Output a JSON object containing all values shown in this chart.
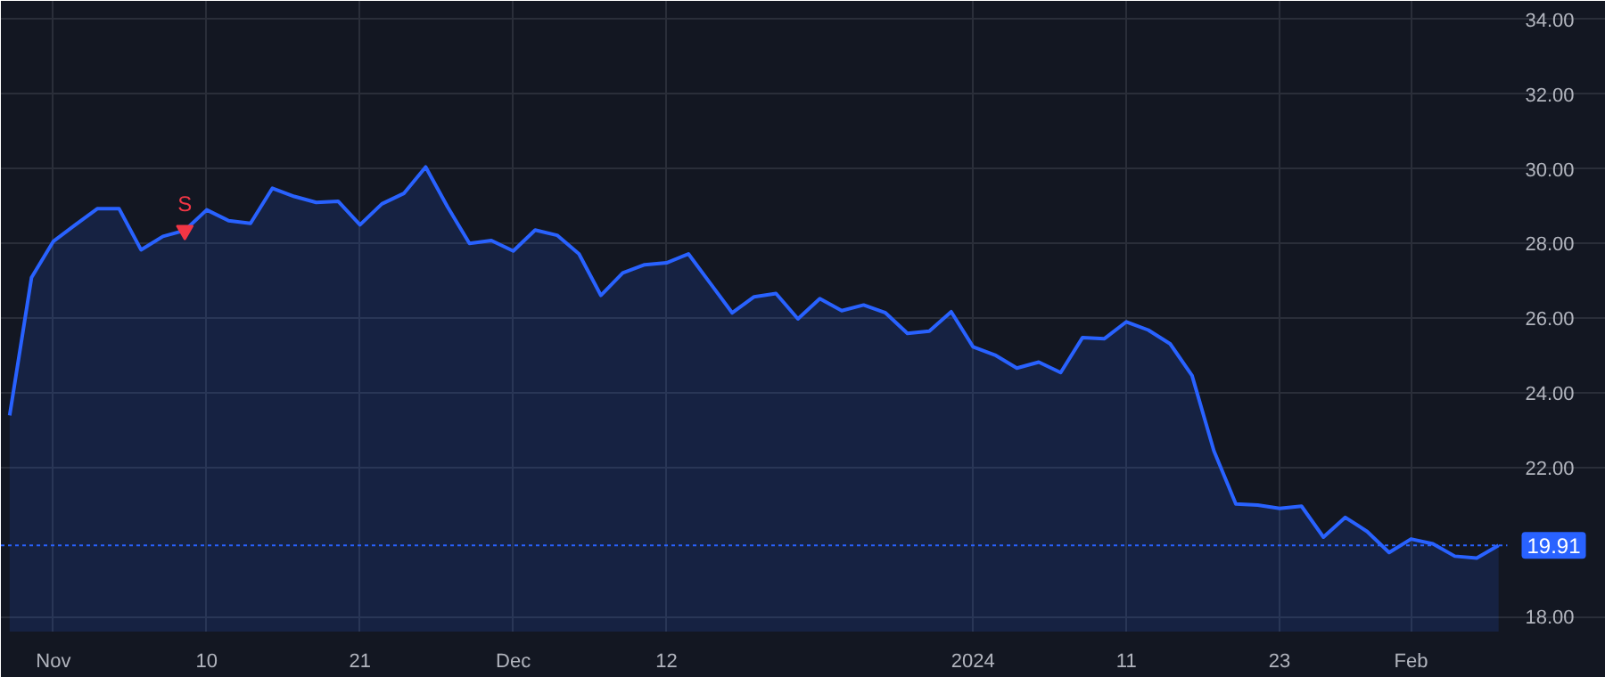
{
  "chart_data": {
    "type": "area",
    "categories": [
      null,
      null,
      "Nov",
      null,
      null,
      null,
      null,
      null,
      null,
      "10",
      null,
      null,
      null,
      null,
      null,
      null,
      "21",
      null,
      null,
      null,
      null,
      null,
      null,
      "Dec",
      null,
      null,
      null,
      null,
      null,
      null,
      "12",
      null,
      null,
      null,
      null,
      null,
      null,
      null,
      null,
      null,
      null,
      null,
      null,
      null,
      "2024",
      null,
      null,
      null,
      null,
      null,
      null,
      "11",
      null,
      null,
      null,
      null,
      null,
      null,
      "23",
      null,
      null,
      null,
      null,
      null,
      "Feb",
      null,
      null,
      null,
      null
    ],
    "series": [
      {
        "color": "#2962ff",
        "values": [
          23.39,
          27.09,
          28.06,
          28.5,
          28.93,
          28.93,
          27.83,
          28.19,
          28.35,
          28.9,
          28.61,
          28.54,
          29.48,
          29.26,
          29.1,
          29.13,
          28.5,
          29.06,
          29.34,
          30.05,
          28.98,
          28.0,
          28.08,
          27.8,
          28.36,
          28.22,
          27.72,
          26.61,
          27.21,
          27.43,
          27.48,
          27.72,
          26.93,
          26.14,
          26.57,
          26.66,
          25.98,
          26.52,
          26.2,
          26.35,
          26.14,
          25.59,
          25.65,
          26.17,
          25.23,
          25.01,
          24.66,
          24.82,
          24.54,
          25.48,
          25.45,
          25.9,
          25.68,
          25.31,
          24.46,
          22.44,
          21.02,
          20.99,
          20.9,
          20.96,
          20.13,
          20.66,
          20.28,
          19.72,
          20.08,
          19.95,
          19.62,
          19.57,
          19.91
        ]
      }
    ],
    "ylim": [
      17.6,
      34.5
    ],
    "yticks": [
      {
        "value": 18,
        "label": "18.00"
      },
      {
        "value": 22,
        "label": "22.00"
      },
      {
        "value": 24,
        "label": "24.00"
      },
      {
        "value": 26,
        "label": "26.00"
      },
      {
        "value": 28,
        "label": "28.00"
      },
      {
        "value": 30,
        "label": "30.00"
      },
      {
        "value": 32,
        "label": "32.00"
      },
      {
        "value": 34,
        "label": "34.00"
      }
    ],
    "ref_lines": [
      {
        "axis": "y",
        "value": 19.91,
        "label": "19.91",
        "color": "#2962ff",
        "line_style": "dotted"
      }
    ],
    "annotations": [
      {
        "text": "S",
        "y": 28.35
      }
    ],
    "grid": true
  }
}
